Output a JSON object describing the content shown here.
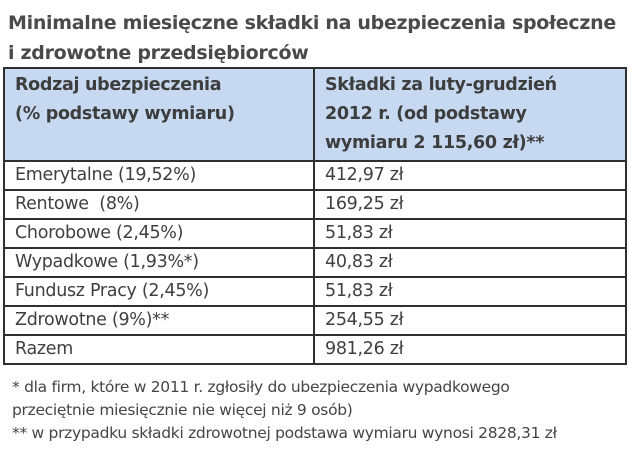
{
  "title": {
    "line1": "Minimalne miesięczne składki na ubezpieczenia społeczne",
    "line2": "i zdrowotne przedsiębiorców"
  },
  "table": {
    "header": {
      "col1": [
        "Rodzaj ubezpieczenia",
        "(% podstawy wymiaru)"
      ],
      "col2": [
        "Składki za luty-grudzień",
        "2012 r. (od podstawy",
        "wymiaru 2 115,60 zł)**"
      ]
    },
    "header_bg": "#c6d9f1",
    "rows": [
      {
        "type": "Emerytalne (19,52%)",
        "amount": "412,97 zł"
      },
      {
        "type": "Rentowe  (8%)",
        "amount": "169,25 zł"
      },
      {
        "type": "Chorobowe (2,45%)",
        "amount": "51,83 zł"
      },
      {
        "type": "Wypadkowe (1,93%*)",
        "amount": "40,83 zł"
      },
      {
        "type": "Fundusz Pracy (2,45%)",
        "amount": "51,83 zł"
      },
      {
        "type": "Zdrowotne (9%)**",
        "amount": "254,55 zł"
      },
      {
        "type": "Razem",
        "amount": "981,26 zł"
      }
    ]
  },
  "notes": {
    "n1_line1": "* dla firm, które w 2011 r. zgłosiły do ubezpieczenia wypadkowego",
    "n1_line2": "przeciętnie miesięcznie nie więcej niż 9 osób)",
    "n2": "** w przypadku składki zdrowotnej podstawa wymiaru wynosi 2828,31 zł"
  }
}
